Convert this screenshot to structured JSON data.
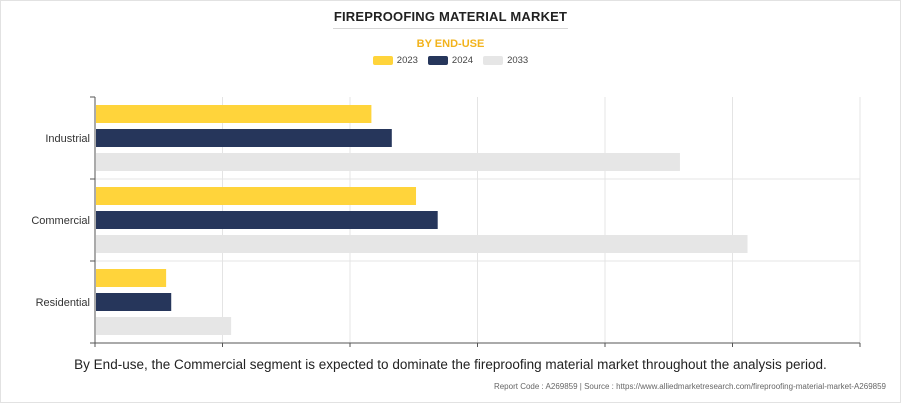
{
  "header": {
    "title": "FIREPROOFING MATERIAL MARKET",
    "subtitle": "BY END-USE"
  },
  "colors": {
    "series_2023": "#FFD43B",
    "series_2024": "#26365B",
    "series_2033": "#E6E6E6",
    "subtitle": "#F2B31C",
    "grid": "#E4E4E4"
  },
  "chart_data": {
    "type": "bar",
    "orientation": "horizontal",
    "categories": [
      "Industrial",
      "Commercial",
      "Residential"
    ],
    "series": [
      {
        "name": "2023",
        "values": [
          21.6,
          25.1,
          5.5
        ]
      },
      {
        "name": "2024",
        "values": [
          23.2,
          26.8,
          5.9
        ]
      },
      {
        "name": "2033",
        "values": [
          45.8,
          51.1,
          10.6
        ]
      }
    ],
    "xlim": [
      0,
      60
    ],
    "grid": true,
    "legend": "top-center"
  },
  "caption": "By End-use, the Commercial segment is expected to dominate the fireproofing material market throughout the analysis period.",
  "source": "Report Code : A269859  |  Source : https://www.alliedmarketresearch.com/fireproofing-material-market-A269859"
}
